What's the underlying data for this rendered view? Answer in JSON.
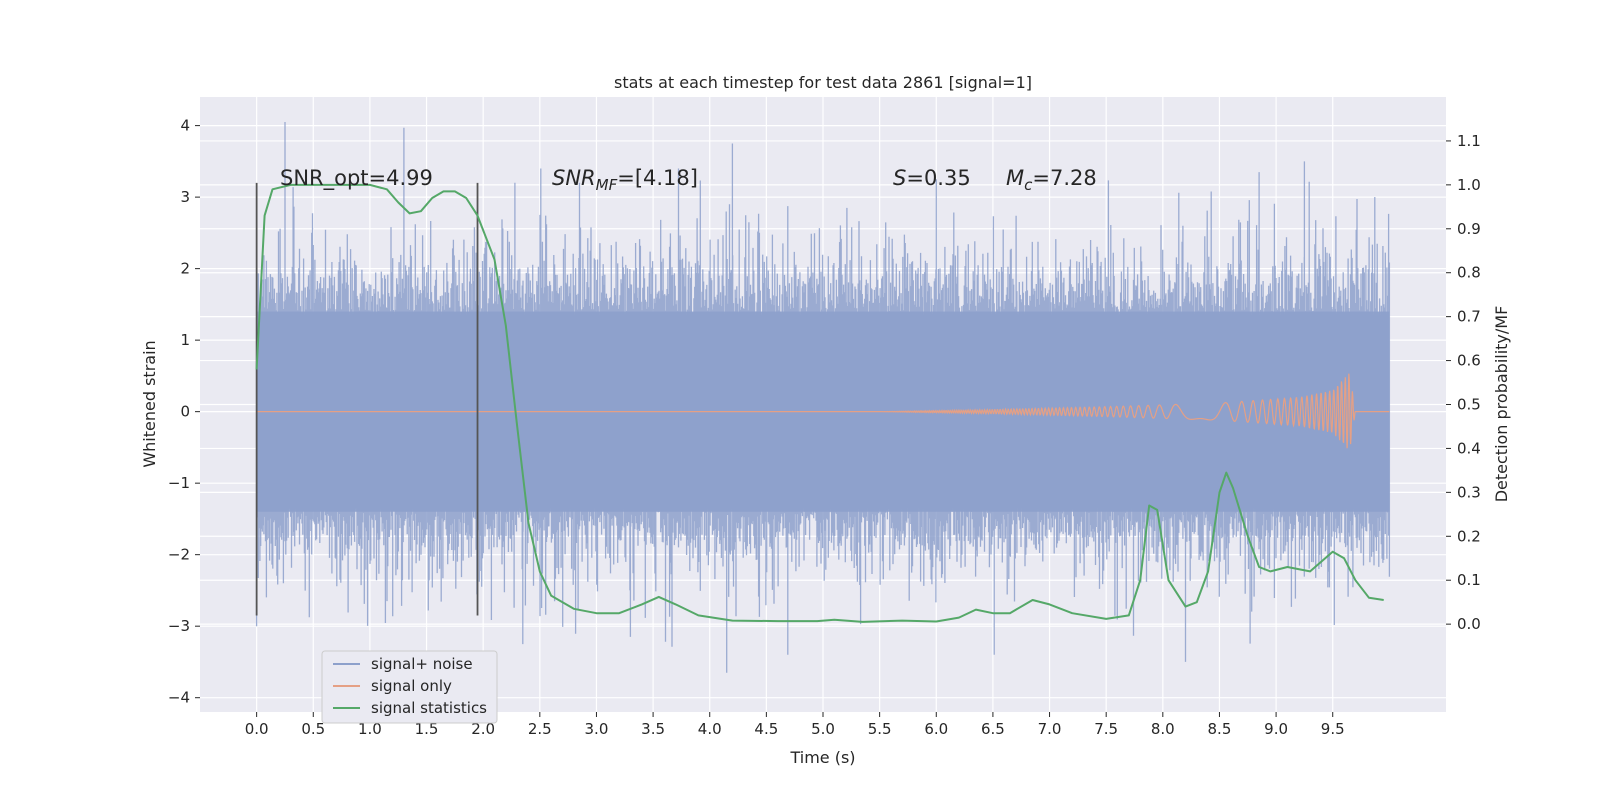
{
  "chart_data": {
    "type": "line",
    "title": "stats at each timestep for test data 2861 [signal=1]",
    "xlabel": "Time (s)",
    "ylabel": "Whitened strain",
    "y2label": "Detection probability/MF",
    "xlim": [
      -0.5,
      10.5
    ],
    "ylim": [
      -4.2,
      4.4
    ],
    "y2lim": [
      -0.2,
      1.2
    ],
    "x_ticks": [
      "0.0",
      "0.5",
      "1.0",
      "1.5",
      "2.0",
      "2.5",
      "3.0",
      "3.5",
      "4.0",
      "4.5",
      "5.0",
      "5.5",
      "6.0",
      "6.5",
      "7.0",
      "7.5",
      "8.0",
      "8.5",
      "9.0",
      "9.5"
    ],
    "y_ticks": [
      "4",
      "3",
      "2",
      "1",
      "0",
      "−1",
      "−2",
      "−3",
      "−4"
    ],
    "y2_ticks": [
      "1.1",
      "1.0",
      "0.9",
      "0.8",
      "0.7",
      "0.6",
      "0.5",
      "0.4",
      "0.3",
      "0.2",
      "0.1",
      "0.0"
    ],
    "grid": true,
    "legend_position": "lower-left",
    "annotations": {
      "snr_opt": "SNR_opt=4.99",
      "snr_mf_main": "SNR",
      "snr_mf_sub": "MF",
      "snr_mf_value": "=[4.18]",
      "s_main": "S",
      "s_value": "=0.35",
      "mc_main": "M",
      "mc_sub": "c",
      "mc_value": "=7.28"
    },
    "window_markers": {
      "x": [
        0.0,
        1.95
      ],
      "y": [
        -2.85,
        3.2
      ]
    },
    "series": [
      {
        "name": "signal+ noise",
        "color": "#8da0cb",
        "style": "dense noise, roughly |y| < 1.4 with spikes up to about 4",
        "spikes": [
          {
            "x": 0.25,
            "y": 4.05
          },
          {
            "x": 1.3,
            "y": 3.97
          },
          {
            "x": 4.2,
            "y": 3.75
          },
          {
            "x": 4.15,
            "y": -3.65
          },
          {
            "x": 8.2,
            "y": -3.5
          },
          {
            "x": 0.0,
            "y": -3.0
          },
          {
            "x": 2.35,
            "y": -3.25
          },
          {
            "x": 3.3,
            "y": -3.15
          },
          {
            "x": 9.25,
            "y": 3.5
          },
          {
            "x": 8.85,
            "y": 3.35
          },
          {
            "x": 6.0,
            "y": 3.25
          },
          {
            "x": 2.85,
            "y": 3.2
          }
        ]
      },
      {
        "name": "signal only",
        "color": "#e5a085",
        "style": "chirp growing from x=5.5 to x=9.7",
        "envelope": [
          {
            "x": 5.5,
            "amp": 0.0
          },
          {
            "x": 6.5,
            "amp": 0.03
          },
          {
            "x": 7.5,
            "amp": 0.07
          },
          {
            "x": 8.5,
            "amp": 0.12
          },
          {
            "x": 9.2,
            "amp": 0.2
          },
          {
            "x": 9.5,
            "amp": 0.3
          },
          {
            "x": 9.65,
            "amp": 0.55
          },
          {
            "x": 9.7,
            "amp": 0.0
          }
        ]
      },
      {
        "name": "signal statistics",
        "color": "#55a868",
        "axis": "right",
        "points": [
          {
            "x": 0.0,
            "y": 0.58
          },
          {
            "x": 0.07,
            "y": 0.93
          },
          {
            "x": 0.14,
            "y": 0.99
          },
          {
            "x": 0.3,
            "y": 1.0
          },
          {
            "x": 0.6,
            "y": 1.0
          },
          {
            "x": 1.0,
            "y": 1.0
          },
          {
            "x": 1.15,
            "y": 0.99
          },
          {
            "x": 1.25,
            "y": 0.96
          },
          {
            "x": 1.35,
            "y": 0.935
          },
          {
            "x": 1.45,
            "y": 0.94
          },
          {
            "x": 1.55,
            "y": 0.97
          },
          {
            "x": 1.65,
            "y": 0.985
          },
          {
            "x": 1.75,
            "y": 0.985
          },
          {
            "x": 1.85,
            "y": 0.97
          },
          {
            "x": 1.95,
            "y": 0.93
          },
          {
            "x": 2.1,
            "y": 0.83
          },
          {
            "x": 2.2,
            "y": 0.68
          },
          {
            "x": 2.3,
            "y": 0.45
          },
          {
            "x": 2.4,
            "y": 0.23
          },
          {
            "x": 2.5,
            "y": 0.12
          },
          {
            "x": 2.6,
            "y": 0.065
          },
          {
            "x": 2.8,
            "y": 0.035
          },
          {
            "x": 3.0,
            "y": 0.025
          },
          {
            "x": 3.2,
            "y": 0.025
          },
          {
            "x": 3.4,
            "y": 0.045
          },
          {
            "x": 3.55,
            "y": 0.062
          },
          {
            "x": 3.7,
            "y": 0.045
          },
          {
            "x": 3.9,
            "y": 0.02
          },
          {
            "x": 4.2,
            "y": 0.008
          },
          {
            "x": 4.6,
            "y": 0.007
          },
          {
            "x": 4.95,
            "y": 0.007
          },
          {
            "x": 5.1,
            "y": 0.01
          },
          {
            "x": 5.35,
            "y": 0.005
          },
          {
            "x": 5.7,
            "y": 0.008
          },
          {
            "x": 6.0,
            "y": 0.006
          },
          {
            "x": 6.2,
            "y": 0.015
          },
          {
            "x": 6.35,
            "y": 0.033
          },
          {
            "x": 6.5,
            "y": 0.025
          },
          {
            "x": 6.65,
            "y": 0.025
          },
          {
            "x": 6.85,
            "y": 0.055
          },
          {
            "x": 7.0,
            "y": 0.045
          },
          {
            "x": 7.2,
            "y": 0.025
          },
          {
            "x": 7.5,
            "y": 0.012
          },
          {
            "x": 7.7,
            "y": 0.02
          },
          {
            "x": 7.8,
            "y": 0.1
          },
          {
            "x": 7.88,
            "y": 0.27
          },
          {
            "x": 7.95,
            "y": 0.26
          },
          {
            "x": 8.05,
            "y": 0.1
          },
          {
            "x": 8.2,
            "y": 0.04
          },
          {
            "x": 8.3,
            "y": 0.05
          },
          {
            "x": 8.4,
            "y": 0.12
          },
          {
            "x": 8.5,
            "y": 0.3
          },
          {
            "x": 8.56,
            "y": 0.345
          },
          {
            "x": 8.62,
            "y": 0.31
          },
          {
            "x": 8.75,
            "y": 0.2
          },
          {
            "x": 8.85,
            "y": 0.13
          },
          {
            "x": 8.95,
            "y": 0.12
          },
          {
            "x": 9.1,
            "y": 0.13
          },
          {
            "x": 9.3,
            "y": 0.12
          },
          {
            "x": 9.5,
            "y": 0.165
          },
          {
            "x": 9.6,
            "y": 0.15
          },
          {
            "x": 9.7,
            "y": 0.1
          },
          {
            "x": 9.82,
            "y": 0.06
          },
          {
            "x": 9.95,
            "y": 0.055
          }
        ]
      }
    ]
  }
}
